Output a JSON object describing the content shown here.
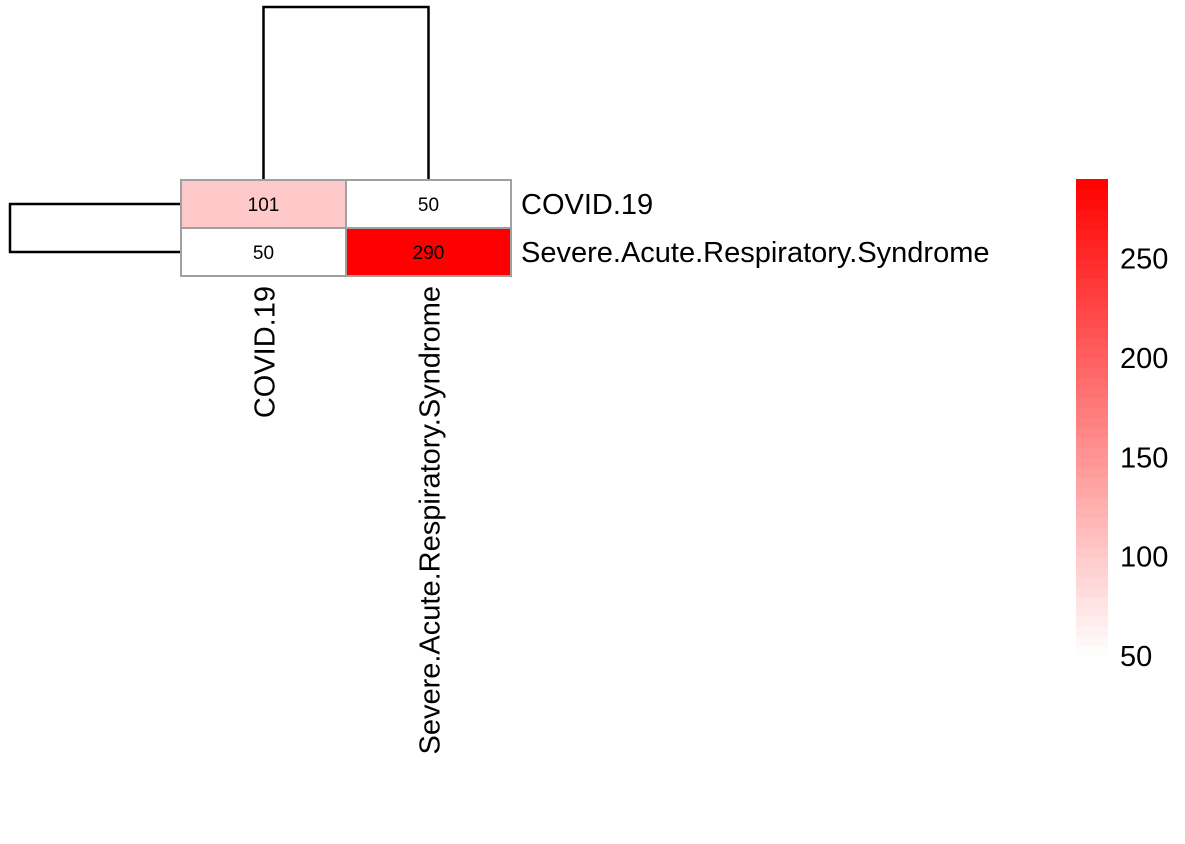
{
  "chart_data": {
    "type": "heatmap",
    "rows": [
      "COVID.19",
      "Severe.Acute.Respiratory.Syndrome"
    ],
    "columns": [
      "COVID.19",
      "Severe.Acute.Respiratory.Syndrome"
    ],
    "values": [
      [
        101,
        50
      ],
      [
        50,
        290
      ]
    ],
    "cell_labels": [
      [
        "101",
        "50"
      ],
      [
        "50",
        "290"
      ]
    ],
    "row_dendrogram": true,
    "column_dendrogram": true,
    "color_scale": {
      "low_color": "#ffffff",
      "high_color": "#ff0000",
      "range": [
        50,
        290
      ],
      "ticks": [
        50,
        100,
        150,
        200,
        250
      ],
      "tick_labels": [
        "50",
        "100",
        "150",
        "200",
        "250"
      ]
    },
    "cell_border_color": "#a0a0a0"
  }
}
